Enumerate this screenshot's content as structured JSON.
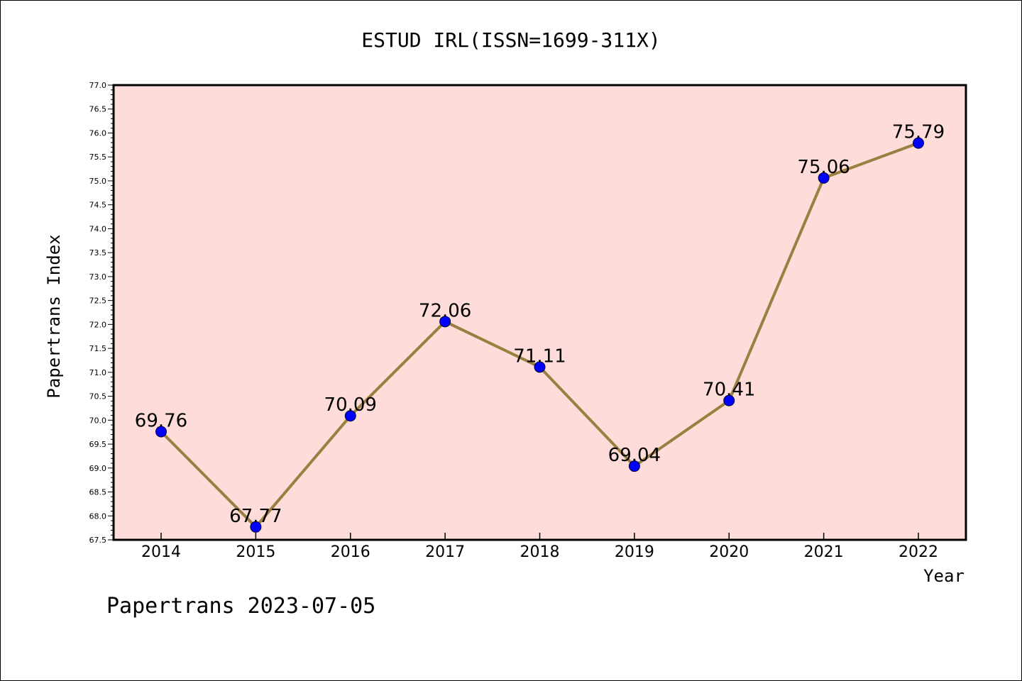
{
  "chart_data": {
    "type": "line",
    "title": "ESTUD IRL(ISSN=1699-311X)",
    "xlabel": "Year",
    "ylabel": "Papertrans Index",
    "categories": [
      "2014",
      "2015",
      "2016",
      "2017",
      "2018",
      "2019",
      "2020",
      "2021",
      "2022"
    ],
    "values": [
      69.76,
      67.77,
      70.09,
      72.06,
      71.11,
      69.04,
      70.41,
      75.06,
      75.79
    ],
    "value_labels": [
      "69.76",
      "67.77",
      "70.09",
      "72.06",
      "71.11",
      "69.04",
      "70.41",
      "75.06",
      "75.79"
    ],
    "ylim": [
      67.5,
      77.0
    ],
    "yticks": [
      "67.5",
      "68.0",
      "68.5",
      "69.0",
      "69.5",
      "70.0",
      "70.5",
      "71.0",
      "71.5",
      "72.0",
      "72.5",
      "73.0",
      "73.5",
      "74.0",
      "74.5",
      "75.0",
      "75.5",
      "76.0",
      "76.5",
      "77.0"
    ],
    "grid": false,
    "legend": "none",
    "colors": {
      "plot_background": "#fddcd9",
      "line": "#9a8040",
      "marker": "#0000ff",
      "axis": "#000000"
    }
  },
  "footer": {
    "text": "Papertrans 2023-07-05"
  }
}
